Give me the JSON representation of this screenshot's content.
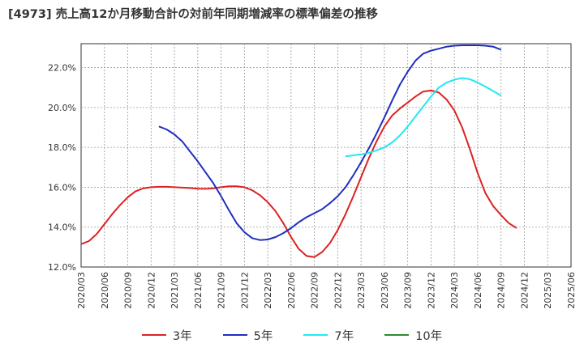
{
  "chart_data": {
    "type": "line",
    "title": "[4973]  売上高12か月移動合計の対前年同期増減率の標準偏差の推移",
    "xlabel": "",
    "ylabel": "",
    "ylim": [
      12.0,
      23.2
    ],
    "yticks": [
      12.0,
      14.0,
      16.0,
      18.0,
      20.0,
      22.0
    ],
    "ytick_labels": [
      "12.0%",
      "14.0%",
      "16.0%",
      "18.0%",
      "20.0%",
      "22.0%"
    ],
    "xtick_labels": [
      "2020/03",
      "2020/06",
      "2020/09",
      "2020/12",
      "2021/03",
      "2021/06",
      "2021/09",
      "2021/12",
      "2022/03",
      "2022/06",
      "2022/09",
      "2022/12",
      "2023/03",
      "2023/06",
      "2023/09",
      "2023/12",
      "2024/03",
      "2024/06",
      "2024/09",
      "2024/12",
      "2025/03",
      "2025/06"
    ],
    "grid": true,
    "legend_position": "bottom",
    "series": [
      {
        "name": "3年",
        "color": "#dd2222",
        "start": "2020/03",
        "values": [
          13.15,
          13.3,
          13.65,
          14.15,
          14.65,
          15.1,
          15.5,
          15.8,
          15.95,
          16.0,
          16.02,
          16.02,
          16.0,
          15.98,
          15.96,
          15.93,
          15.92,
          15.95,
          16.0,
          16.05,
          16.05,
          16.0,
          15.85,
          15.6,
          15.25,
          14.8,
          14.2,
          13.5,
          12.9,
          12.55,
          12.5,
          12.75,
          13.2,
          13.85,
          14.65,
          15.55,
          16.5,
          17.45,
          18.3,
          19.05,
          19.6,
          19.95,
          20.25,
          20.55,
          20.8,
          20.85,
          20.75,
          20.4,
          19.85,
          19.0,
          17.9,
          16.7,
          15.7,
          15.05,
          14.6,
          14.2,
          13.95
        ]
      },
      {
        "name": "5年",
        "color": "#1f2fbf",
        "start": "2021/01",
        "values": [
          19.05,
          18.9,
          18.65,
          18.3,
          17.8,
          17.3,
          16.75,
          16.2,
          15.55,
          14.85,
          14.2,
          13.75,
          13.45,
          13.35,
          13.38,
          13.5,
          13.7,
          13.95,
          14.25,
          14.5,
          14.7,
          14.9,
          15.2,
          15.55,
          16.0,
          16.6,
          17.25,
          17.95,
          18.7,
          19.5,
          20.35,
          21.15,
          21.8,
          22.35,
          22.7,
          22.85,
          22.95,
          23.05,
          23.1,
          23.12,
          23.12,
          23.12,
          23.1,
          23.05,
          22.9
        ]
      },
      {
        "name": "7年",
        "color": "#22e8f0",
        "start": "2023/01",
        "values": [
          17.55,
          17.6,
          17.65,
          17.72,
          17.85,
          18.0,
          18.25,
          18.6,
          19.05,
          19.55,
          20.05,
          20.55,
          21.0,
          21.25,
          21.4,
          21.48,
          21.42,
          21.25,
          21.05,
          20.82,
          20.6
        ]
      },
      {
        "name": "10年",
        "color": "#2e8b2e",
        "start": "2025/03",
        "values": []
      }
    ]
  }
}
